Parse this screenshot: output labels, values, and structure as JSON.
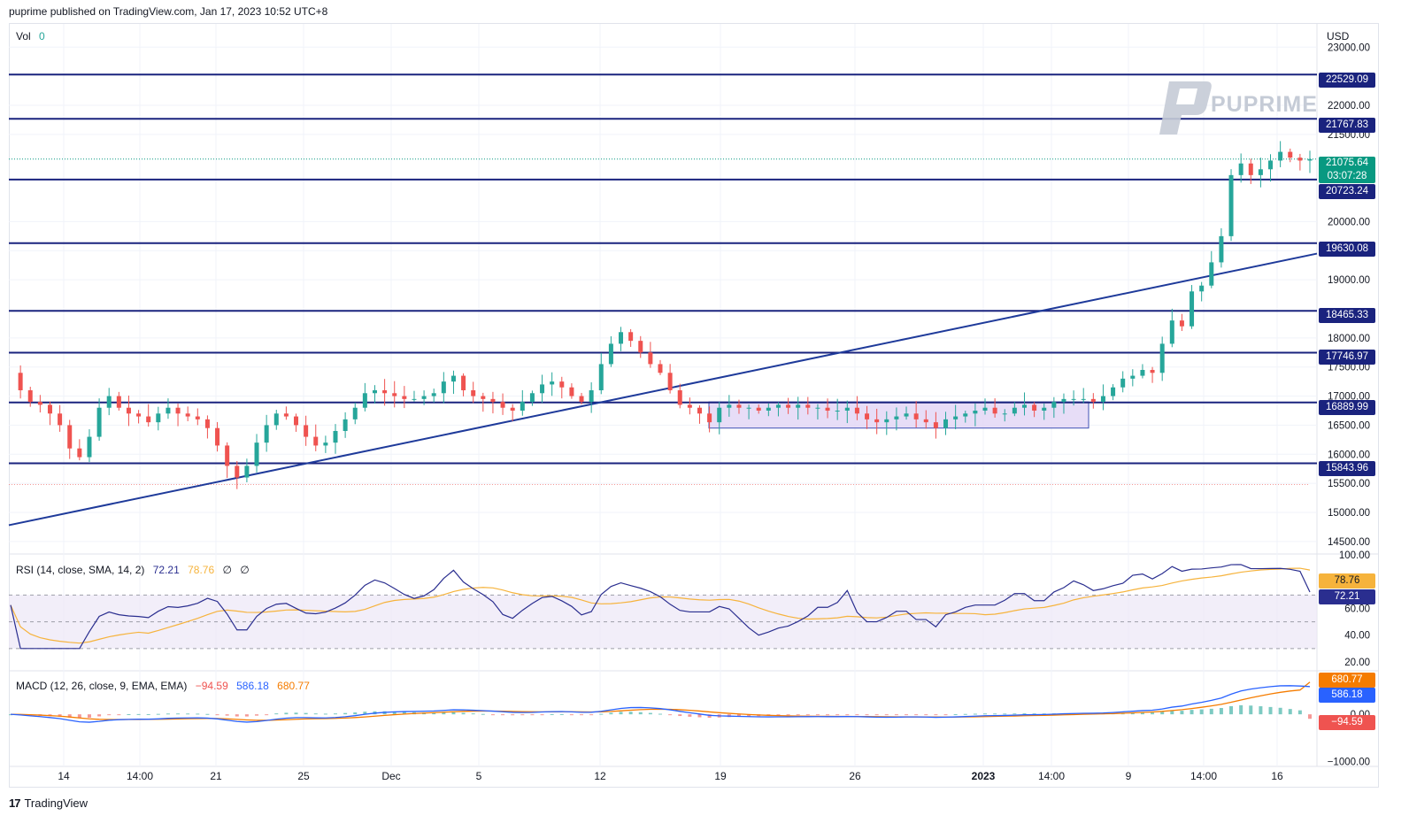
{
  "header": {
    "published_text": "puprime published on TradingView.com, Jan 17, 2023 10:52 UTC+8"
  },
  "footer": {
    "brand": "TradingView",
    "logo_glyph": "17"
  },
  "watermark": {
    "text": "PUPRIME"
  },
  "colors": {
    "up": "#26a69a",
    "down": "#ef5350",
    "level_line": "#1a237e",
    "trend_line": "#1e3a9a",
    "range_box_fill": "#e1d5f5",
    "range_box_border": "#3f51b5",
    "rsi_line": "#2a2e8f",
    "rsi_ma": "#f6b33c",
    "macd_line": "#2962ff",
    "signal_line": "#f57c00",
    "current_price": "#089981"
  },
  "chart_data": [
    {
      "type": "candlestick",
      "title": "",
      "volume_label": "Vol",
      "volume_value": "0",
      "currency": "USD",
      "x_tick_labels": [
        "14",
        "14:00",
        "21",
        "25",
        "Dec",
        "5",
        "12",
        "19",
        "26",
        "2023",
        "14:00",
        "9",
        "14:00",
        "16"
      ],
      "y_tick_labels": [
        "23000.00",
        "22000.00",
        "21500.00",
        "20000.00",
        "19500.00",
        "19000.00",
        "18000.00",
        "17500.00",
        "17000.00",
        "16500.00",
        "16000.00",
        "15500.00",
        "15000.00",
        "14500.00"
      ],
      "ylim": [
        14300,
        23400
      ],
      "horizontal_levels": [
        22529.09,
        21767.83,
        20723.24,
        19630.08,
        18465.33,
        17746.97,
        16889.99,
        15843.96
      ],
      "level_labels": [
        "22529.09",
        "21767.83",
        "20723.24",
        "19630.08",
        "18465.33",
        "17746.97",
        "16889.99",
        "15843.96"
      ],
      "current_price": "21075.64",
      "countdown": "03:07:28",
      "trend_line": {
        "start_price": 14780,
        "end_price": 19450
      },
      "range_box": {
        "low": 16450,
        "high": 16900
      },
      "approx_close_path": [
        17400,
        17100,
        16900,
        16850,
        16700,
        16500,
        16100,
        15950,
        16300,
        16800,
        17000,
        16800,
        16700,
        16650,
        16550,
        16700,
        16800,
        16700,
        16650,
        16600,
        16450,
        16150,
        15800,
        15600,
        15800,
        16200,
        16500,
        16700,
        16650,
        16500,
        16300,
        16150,
        16200,
        16400,
        16600,
        16800,
        17050,
        17100,
        17050,
        17000,
        16950,
        16950,
        17000,
        17050,
        17250,
        17350,
        17100,
        17000,
        16950,
        16900,
        16800,
        16750,
        16900,
        17050,
        17200,
        17250,
        17150,
        17000,
        16900,
        17100,
        17550,
        17900,
        18100,
        17950,
        17750,
        17550,
        17400,
        17100,
        16850,
        16800,
        16700,
        16550,
        16800,
        16850,
        16800,
        16800,
        16750,
        16800,
        16850,
        16800,
        16850,
        16800,
        16800,
        16750,
        16750,
        16800,
        16700,
        16600,
        16550,
        16600,
        16650,
        16700,
        16600,
        16550,
        16450,
        16600,
        16650,
        16700,
        16750,
        16800,
        16700,
        16700,
        16800,
        16850,
        16750,
        16800,
        16900,
        16950,
        16950,
        16950,
        16900,
        17000,
        17150,
        17300,
        17350,
        17450,
        17400,
        17900,
        18300,
        18200,
        18800,
        18900,
        19300,
        19750,
        20800,
        21000,
        20800,
        20900,
        21050,
        21200,
        21100,
        21050,
        21075
      ]
    },
    {
      "type": "line",
      "title": "",
      "label_text": "RSI (14, close, SMA, 14, 2)",
      "values_text": [
        "72.21",
        "78.76"
      ],
      "extra_text": [
        "∅",
        "∅"
      ],
      "y_tick_labels": [
        "100.00",
        "60.00",
        "40.00",
        "20.00"
      ],
      "ylim": [
        14,
        100
      ],
      "band": [
        30,
        70
      ],
      "rsi_last": 72.21,
      "rsi_ma_last": 78.76
    },
    {
      "type": "line",
      "title": "",
      "label_text": "MACD (12, 26, close, 9, EMA, EMA)",
      "values_text": [
        "−94.59",
        "586.18",
        "680.77"
      ],
      "y_tick_labels": [
        "0.00",
        "−1000.00"
      ],
      "ylim": [
        -1100,
        900
      ],
      "macd_last": 586.18,
      "signal_last": 680.77,
      "histogram_last": -94.59
    }
  ]
}
